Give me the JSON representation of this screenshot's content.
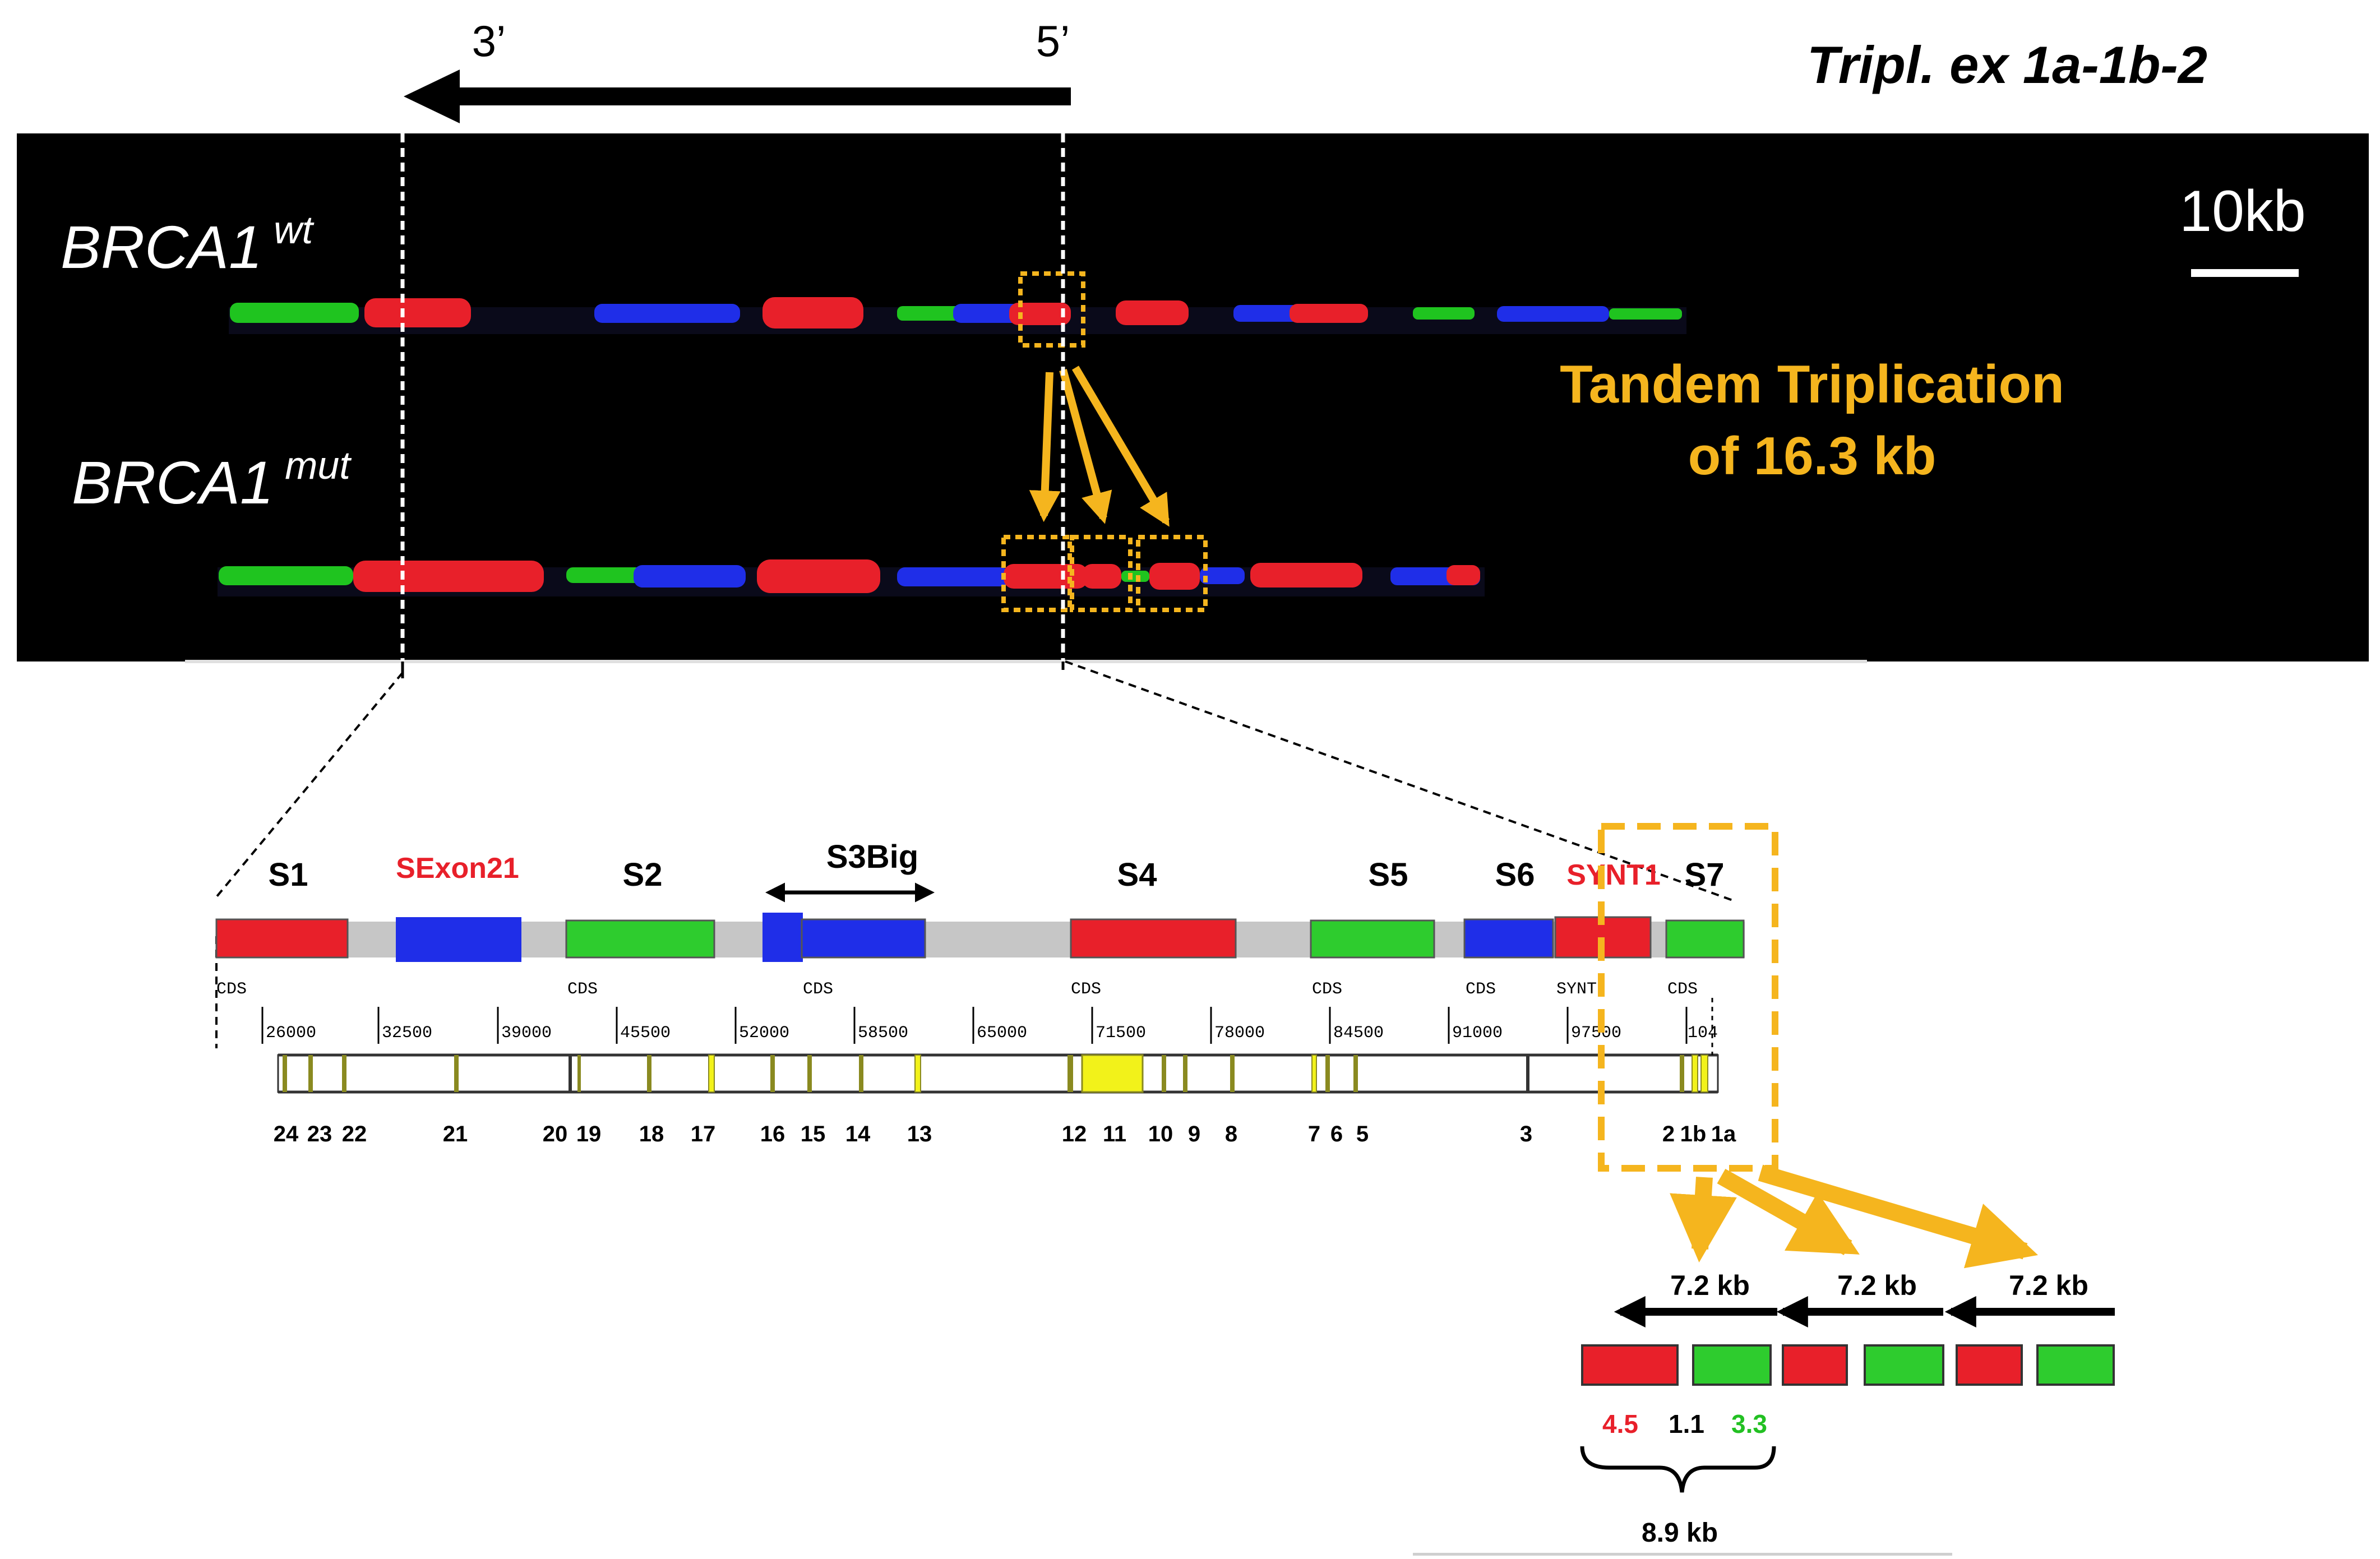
{
  "header": {
    "title": "Tripl. ex 1a-1b-2",
    "end3": "3’",
    "end5": "5’"
  },
  "gel": {
    "scale_label": "10kb",
    "wt_label_main": "BRCA1",
    "wt_label_sup": "wt",
    "mut_label_main": "BRCA1",
    "mut_label_sup": "mut",
    "annotation_line1": "Tandem Triplication",
    "annotation_line2": "of 16.3 kb"
  },
  "map": {
    "probe_labels": [
      "S1",
      "SExon21",
      "S2",
      "S3Big",
      "S4",
      "S5",
      "S6",
      "SYNT1",
      "S7"
    ],
    "cds_labels": [
      "CDS",
      "CDS",
      "CDS",
      "CDS",
      "CDS",
      "CDS",
      "SYNT",
      "CDS"
    ],
    "coords": [
      "26000",
      "32500",
      "39000",
      "45500",
      "52000",
      "58500",
      "65000",
      "71500",
      "78000",
      "84500",
      "91000",
      "97500",
      "104"
    ],
    "exons": [
      "24",
      "23",
      "22",
      "21",
      "20",
      "19",
      "18",
      "17",
      "16",
      "15",
      "14",
      "13",
      "12",
      "11",
      "10",
      "9",
      "8",
      "7",
      "6",
      "5",
      "3",
      "2",
      "1b",
      "1a"
    ]
  },
  "triplication": {
    "repeat_labels": [
      "7.2 kb",
      "7.2 kb",
      "7.2 kb"
    ],
    "len_red": "4.5",
    "len_gap": "1.1",
    "len_green": "3.3",
    "total": "8.9 kb"
  },
  "colors": {
    "red": "#e8202a",
    "green": "#2ecc2e",
    "blue": "#1f2ee8",
    "orange": "#f5b51e",
    "gray": "#c6c6c6",
    "label_red": "#e8202a",
    "label_green": "#22c022",
    "exon_tick": "#8a8a20",
    "exon_yellow": "#f2f21a"
  }
}
